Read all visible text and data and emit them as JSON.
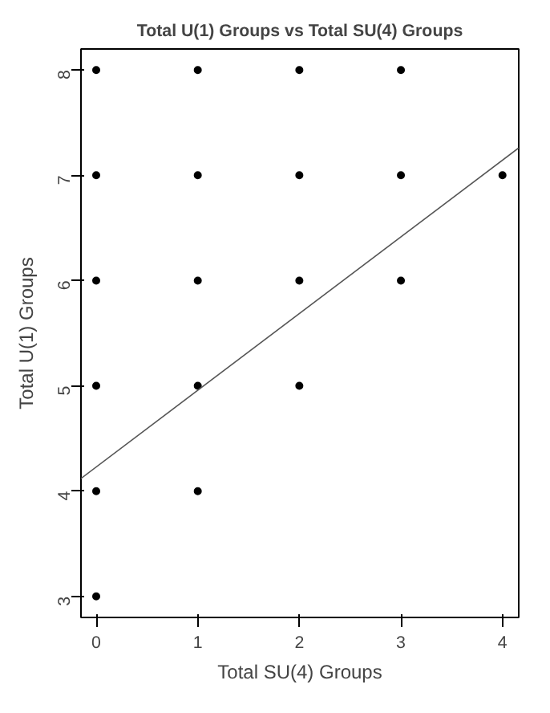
{
  "chart_data": {
    "type": "scatter",
    "title": "Total U(1) Groups vs Total SU(4) Groups",
    "xlabel": "Total SU(4) Groups",
    "ylabel": "Total U(1) Groups",
    "xlim": [
      -0.15,
      4.16
    ],
    "ylim": [
      2.8,
      8.2
    ],
    "xticks": [
      0,
      1,
      2,
      3,
      4
    ],
    "yticks": [
      3,
      4,
      5,
      6,
      7,
      8
    ],
    "grid": false,
    "series": [
      {
        "color": "#000000",
        "marker": "circle",
        "x": [
          0,
          0,
          0,
          0,
          0,
          0,
          1,
          1,
          1,
          1,
          1,
          2,
          2,
          2,
          2,
          3,
          3,
          3,
          4
        ],
        "values": [
          3,
          4,
          5,
          6,
          7,
          8,
          4,
          5,
          6,
          7,
          8,
          5,
          6,
          7,
          8,
          6,
          7,
          8,
          7
        ]
      },
      {
        "type": "line",
        "color": "#555555",
        "x": [
          -0.15,
          4.16
        ],
        "values": [
          4.12,
          7.26
        ]
      }
    ]
  }
}
